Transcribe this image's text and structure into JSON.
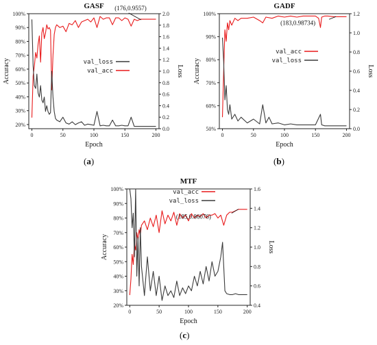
{
  "chart_data": [
    {
      "id": "a",
      "type": "line",
      "title": "GASF",
      "panel_label": "a",
      "xlabel": "Epoch",
      "ylabel_left": "Accuracy",
      "ylabel_right": "Loss",
      "xlim": [
        -5,
        205
      ],
      "ylim_left": [
        0.17,
        1.0
      ],
      "ylim_right": [
        0.0,
        2.0
      ],
      "xticks": [
        0,
        50,
        100,
        150,
        200
      ],
      "yticks_left": [
        0.2,
        0.3,
        0.4,
        0.5,
        0.6,
        0.7,
        0.8,
        0.9,
        1.0
      ],
      "ytick_labels_left": [
        "20%",
        "30%",
        "40%",
        "50%",
        "60%",
        "70%",
        "80%",
        "90%",
        "100%"
      ],
      "yticks_right": [
        0.0,
        0.2,
        0.4,
        0.6,
        0.8,
        1.0,
        1.2,
        1.4,
        1.6,
        1.8,
        2.0
      ],
      "ytick_labels_right": [
        "0.0",
        "0.2",
        "0.4",
        "0.6",
        "0.8",
        "1.0",
        "1.2",
        "1.4",
        "1.6",
        "1.8",
        "2.0"
      ],
      "legend": {
        "placement": "center-right",
        "entries": [
          "val_loss",
          "val_acc"
        ]
      },
      "annotation": {
        "text": "(176,0.9557)",
        "x": 176,
        "y": 0.9557
      },
      "series": [
        {
          "name": "val_acc",
          "color": "#e8191a",
          "axis": "left",
          "x": [
            0,
            2,
            4,
            6,
            8,
            10,
            12,
            14,
            16,
            18,
            20,
            22,
            24,
            26,
            28,
            30,
            32,
            34,
            36,
            38,
            40,
            45,
            50,
            55,
            60,
            65,
            70,
            75,
            80,
            85,
            90,
            95,
            100,
            105,
            110,
            115,
            120,
            125,
            130,
            135,
            140,
            145,
            150,
            155,
            160,
            165,
            170,
            175,
            180,
            185,
            190,
            195,
            200
          ],
          "y": [
            0.25,
            0.55,
            0.62,
            0.72,
            0.68,
            0.78,
            0.84,
            0.65,
            0.86,
            0.9,
            0.82,
            0.86,
            0.92,
            0.89,
            0.9,
            0.88,
            0.45,
            0.7,
            0.85,
            0.9,
            0.92,
            0.9,
            0.91,
            0.87,
            0.93,
            0.92,
            0.95,
            0.9,
            0.94,
            0.95,
            0.96,
            0.94,
            0.97,
            0.9,
            0.98,
            0.96,
            0.97,
            0.97,
            0.92,
            0.97,
            0.97,
            0.95,
            0.97,
            0.96,
            0.91,
            0.96,
            0.95,
            0.96,
            0.96,
            0.96,
            0.96,
            0.96,
            0.96
          ]
        },
        {
          "name": "val_loss",
          "color": "#3a3a3a",
          "axis": "right",
          "x": [
            0,
            2,
            4,
            6,
            8,
            10,
            12,
            14,
            16,
            18,
            20,
            22,
            24,
            26,
            28,
            30,
            32,
            34,
            36,
            38,
            40,
            45,
            50,
            55,
            60,
            65,
            70,
            75,
            80,
            85,
            90,
            95,
            100,
            105,
            110,
            115,
            120,
            125,
            130,
            135,
            140,
            145,
            150,
            155,
            160,
            165,
            170,
            175,
            180,
            185,
            190,
            195,
            200
          ],
          "y": [
            1.9,
            1.1,
            0.75,
            0.7,
            0.95,
            0.62,
            0.55,
            0.75,
            0.5,
            0.45,
            0.55,
            0.3,
            0.4,
            0.3,
            0.25,
            0.28,
            1.0,
            0.55,
            0.3,
            0.18,
            0.15,
            0.12,
            0.2,
            0.1,
            0.08,
            0.12,
            0.07,
            0.1,
            0.12,
            0.06,
            0.08,
            0.07,
            0.06,
            0.3,
            0.05,
            0.06,
            0.05,
            0.05,
            0.15,
            0.05,
            0.05,
            0.06,
            0.05,
            0.05,
            0.2,
            0.04,
            0.04,
            0.04,
            0.04,
            0.04,
            0.04,
            0.04,
            0.04
          ]
        }
      ]
    },
    {
      "id": "b",
      "type": "line",
      "title": "GADF",
      "panel_label": "b",
      "xlabel": "Epoch",
      "ylabel_left": "Accuracy",
      "ylabel_right": "Loss",
      "xlim": [
        -5,
        205
      ],
      "ylim_left": [
        0.5,
        1.0
      ],
      "ylim_right": [
        0.0,
        1.2
      ],
      "xticks": [
        0,
        50,
        100,
        150,
        200
      ],
      "yticks_left": [
        0.5,
        0.6,
        0.7,
        0.8,
        0.9,
        1.0
      ],
      "ytick_labels_left": [
        "50%",
        "60%",
        "70%",
        "80%",
        "90%",
        "100%"
      ],
      "yticks_right": [
        0.0,
        0.2,
        0.4,
        0.6,
        0.8,
        1.0,
        1.2
      ],
      "ytick_labels_right": [
        "0.0",
        "0.2",
        "0.4",
        "0.6",
        "0.8",
        "1.0",
        "1.2"
      ],
      "legend": {
        "placement": "right",
        "entries": [
          "val_acc",
          "val_loss"
        ]
      },
      "annotation": {
        "text": "(183,0.98734)",
        "x": 183,
        "y": 0.98734
      },
      "series": [
        {
          "name": "val_acc",
          "color": "#e8191a",
          "axis": "left",
          "x": [
            0,
            2,
            4,
            6,
            8,
            10,
            12,
            15,
            20,
            25,
            30,
            40,
            50,
            60,
            65,
            70,
            80,
            90,
            100,
            110,
            120,
            130,
            140,
            150,
            155,
            158,
            160,
            165,
            170,
            180,
            190,
            200
          ],
          "y": [
            0.55,
            0.75,
            0.93,
            0.88,
            0.96,
            0.93,
            0.97,
            0.95,
            0.98,
            0.97,
            0.98,
            0.98,
            0.985,
            0.97,
            0.96,
            0.985,
            0.98,
            0.99,
            0.985,
            0.99,
            0.985,
            0.99,
            0.99,
            0.99,
            0.98,
            0.94,
            0.985,
            0.99,
            0.99,
            0.987,
            0.987,
            0.987
          ]
        },
        {
          "name": "val_loss",
          "color": "#3a3a3a",
          "axis": "right",
          "x": [
            0,
            2,
            4,
            6,
            8,
            10,
            12,
            15,
            20,
            25,
            30,
            40,
            50,
            60,
            65,
            70,
            75,
            80,
            90,
            100,
            110,
            120,
            130,
            140,
            150,
            158,
            160,
            165,
            170,
            180,
            190,
            200
          ],
          "y": [
            0.95,
            0.7,
            0.3,
            0.45,
            0.2,
            0.15,
            0.25,
            0.1,
            0.15,
            0.08,
            0.12,
            0.06,
            0.1,
            0.05,
            0.25,
            0.06,
            0.12,
            0.05,
            0.06,
            0.04,
            0.05,
            0.04,
            0.04,
            0.04,
            0.04,
            0.15,
            0.04,
            0.03,
            0.03,
            0.03,
            0.03,
            0.03
          ]
        }
      ]
    },
    {
      "id": "c",
      "type": "line",
      "title": "MTF",
      "panel_label": "c",
      "xlabel": "Epoch",
      "ylabel_left": "Accuracy",
      "ylabel_right": "Loss",
      "xlim": [
        -5,
        205
      ],
      "ylim_left": [
        0.2,
        1.0
      ],
      "ylim_right": [
        0.4,
        1.6
      ],
      "xticks": [
        0,
        50,
        100,
        150,
        200
      ],
      "yticks_left": [
        0.2,
        0.3,
        0.4,
        0.5,
        0.6,
        0.7,
        0.8,
        0.9,
        1.0
      ],
      "ytick_labels_left": [
        "20%",
        "30%",
        "40%",
        "50%",
        "60%",
        "70%",
        "80%",
        "90%",
        "100%"
      ],
      "yticks_right": [
        0.4,
        0.6,
        0.8,
        1.0,
        1.2,
        1.4,
        1.6
      ],
      "ytick_labels_right": [
        "0.4",
        "0.6",
        "0.8",
        "1.0",
        "1.2",
        "1.4",
        "1.6"
      ],
      "legend": {
        "placement": "top-right",
        "entries": [
          "val_acc",
          "val_loss"
        ]
      },
      "annotation": {
        "text": "(185,0.86076)",
        "x": 185,
        "y": 0.86076
      },
      "series": [
        {
          "name": "val_acc",
          "color": "#e8191a",
          "axis": "left",
          "x": [
            0,
            2,
            4,
            6,
            8,
            10,
            12,
            14,
            16,
            18,
            20,
            25,
            30,
            35,
            40,
            45,
            50,
            55,
            60,
            65,
            70,
            75,
            80,
            85,
            90,
            95,
            100,
            105,
            110,
            115,
            120,
            125,
            130,
            135,
            140,
            145,
            150,
            155,
            160,
            165,
            170,
            175,
            180,
            185,
            190,
            195,
            200
          ],
          "y": [
            0.27,
            0.38,
            0.55,
            0.48,
            0.62,
            0.58,
            0.7,
            0.65,
            0.72,
            0.68,
            0.75,
            0.78,
            0.72,
            0.8,
            0.74,
            0.82,
            0.7,
            0.85,
            0.76,
            0.82,
            0.78,
            0.84,
            0.75,
            0.83,
            0.8,
            0.82,
            0.78,
            0.83,
            0.8,
            0.82,
            0.81,
            0.83,
            0.8,
            0.82,
            0.82,
            0.83,
            0.8,
            0.82,
            0.75,
            0.82,
            0.84,
            0.84,
            0.85,
            0.86,
            0.86,
            0.86,
            0.86
          ]
        },
        {
          "name": "val_loss",
          "color": "#3a3a3a",
          "axis": "right",
          "x": [
            0,
            2,
            4,
            6,
            8,
            10,
            12,
            14,
            16,
            18,
            20,
            25,
            30,
            35,
            40,
            45,
            50,
            55,
            60,
            65,
            70,
            75,
            80,
            85,
            90,
            95,
            100,
            105,
            110,
            115,
            120,
            125,
            130,
            135,
            140,
            145,
            150,
            155,
            158,
            160,
            162,
            165,
            170,
            175,
            180,
            185,
            190,
            195,
            200
          ],
          "y": [
            1.6,
            1.5,
            1.2,
            1.35,
            0.9,
            1.6,
            0.7,
            1.1,
            0.6,
            1.2,
            0.8,
            0.5,
            0.9,
            0.55,
            0.75,
            0.5,
            0.7,
            0.45,
            0.6,
            0.5,
            0.55,
            0.48,
            0.65,
            0.5,
            0.58,
            0.52,
            0.6,
            0.55,
            0.7,
            0.6,
            0.75,
            0.62,
            0.8,
            0.65,
            0.85,
            0.7,
            0.75,
            0.9,
            1.05,
            0.8,
            0.55,
            0.52,
            0.51,
            0.51,
            0.52,
            0.51,
            0.51,
            0.51,
            0.51
          ]
        }
      ]
    }
  ]
}
